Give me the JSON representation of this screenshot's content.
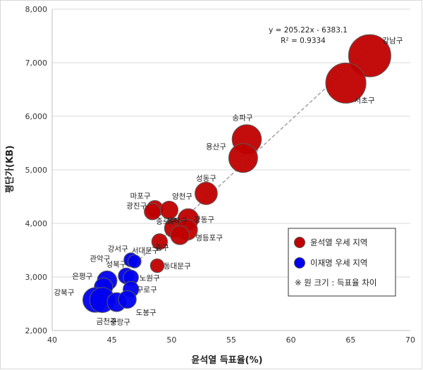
{
  "chart_data": {
    "type": "scatter",
    "title": "",
    "xlabel": "윤석열 득표율(%)",
    "ylabel": "평단가(KB)",
    "xlim": [
      40,
      70
    ],
    "ylim": [
      2000,
      8000
    ],
    "x_ticks": [
      40,
      45,
      50,
      55,
      60,
      65,
      70
    ],
    "y_ticks": [
      2000,
      3000,
      4000,
      5000,
      6000,
      7000,
      8000
    ],
    "x_tick_labels": [
      "40",
      "45",
      "50",
      "55",
      "60",
      "65",
      "70"
    ],
    "y_tick_labels": [
      "2,000",
      "3,000",
      "4,000",
      "5,000",
      "6,000",
      "7,000",
      "8,000"
    ],
    "colors": {
      "yoon": "#c00000",
      "lee": "#0000ee",
      "trend": "#a6a6a6"
    },
    "trendline": {
      "slope": 205.22,
      "intercept": -6383.1,
      "x_range": [
        43.5,
        66.6
      ],
      "equation": "y = 205.22x - 6383.1",
      "r2": "R² = 0.9334"
    },
    "legend": {
      "placement": "bottom-right",
      "entries": [
        {
          "name": "윤석열 우세 지역",
          "color": "yoon"
        },
        {
          "name": "이재명 우세 지역",
          "color": "lee"
        }
      ],
      "note": "※ 원 크기 : 득표율 차이"
    },
    "series": [
      {
        "name": "윤석열 우세 지역",
        "color": "yoon",
        "points": [
          {
            "label": "강남구",
            "x": 66.6,
            "y": 7130,
            "size": 33.5
          },
          {
            "label": "서초구",
            "x": 64.6,
            "y": 6620,
            "size": 29.5
          },
          {
            "label": "송파구",
            "x": 56.3,
            "y": 5570,
            "size": 13.0
          },
          {
            "label": "용산구",
            "x": 56.0,
            "y": 5220,
            "size": 12.5
          },
          {
            "label": "성동구",
            "x": 52.9,
            "y": 4560,
            "size": 6.0
          },
          {
            "label": "마포구",
            "x": 48.6,
            "y": 4270,
            "size": 2.3
          },
          {
            "label": "양천구",
            "x": 49.8,
            "y": 4250,
            "size": 2.8
          },
          {
            "label": "광진구",
            "x": 48.4,
            "y": 4220,
            "size": 2.1
          },
          {
            "label": "강동구",
            "x": 51.4,
            "y": 4080,
            "size": 4.8
          },
          {
            "label": "동작구",
            "x": 50.2,
            "y": 3910,
            "size": 3.5
          },
          {
            "label": "영등포구",
            "x": 51.3,
            "y": 3880,
            "size": 4.8
          },
          {
            "label": "종로구",
            "x": 50.7,
            "y": 3780,
            "size": 3.5
          },
          {
            "label": "중구",
            "x": 49.0,
            "y": 3660,
            "size": 1.8
          },
          {
            "label": "동대문구",
            "x": 48.8,
            "y": 3210,
            "size": 1.0
          }
        ]
      },
      {
        "name": "이재명 우세 지역",
        "color": "lee",
        "points": [
          {
            "label": "강서구",
            "x": 46.6,
            "y": 3320,
            "size": 1.1
          },
          {
            "label": "서대문구",
            "x": 46.9,
            "y": 3290,
            "size": 0.8
          },
          {
            "label": "관악구",
            "x": 44.6,
            "y": 2930,
            "size": 4.0
          },
          {
            "label": "성북구",
            "x": 46.2,
            "y": 3020,
            "size": 1.8
          },
          {
            "label": "노원구",
            "x": 46.6,
            "y": 2990,
            "size": 1.5
          },
          {
            "label": "은평구",
            "x": 44.3,
            "y": 2810,
            "size": 3.2
          },
          {
            "label": "구로구",
            "x": 46.6,
            "y": 2770,
            "size": 1.8
          },
          {
            "label": "강북구",
            "x": 43.6,
            "y": 2570,
            "size": 8.0
          },
          {
            "label": "금천구",
            "x": 44.2,
            "y": 2570,
            "size": 8.5
          },
          {
            "label": "중랑구",
            "x": 45.4,
            "y": 2530,
            "size": 3.5
          },
          {
            "label": "도봉구",
            "x": 46.3,
            "y": 2580,
            "size": 2.8
          }
        ]
      }
    ]
  }
}
